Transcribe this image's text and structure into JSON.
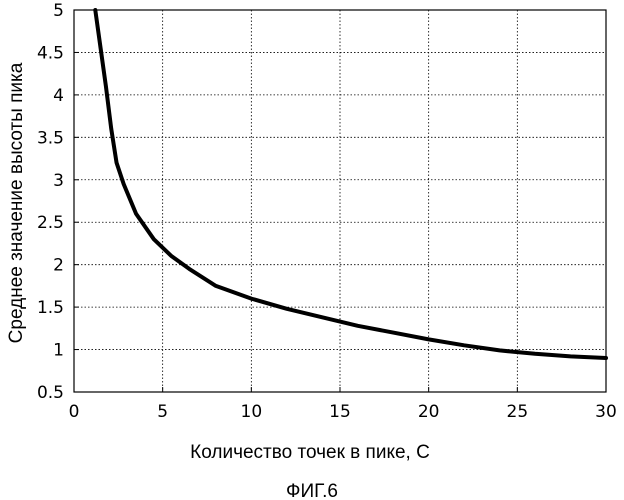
{
  "chart_data": {
    "type": "line",
    "title": "",
    "caption": "ФИГ.6",
    "xlabel": "Количество точек в пике, С",
    "ylabel": "Среднее значение высоты пика",
    "xlim": [
      0,
      30
    ],
    "ylim": [
      0.5,
      5
    ],
    "x_ticks": [
      0,
      5,
      10,
      15,
      20,
      25,
      30
    ],
    "y_ticks": [
      0.5,
      1,
      1.5,
      2,
      2.5,
      3,
      3.5,
      4,
      4.5,
      5
    ],
    "x_tick_labels": [
      "0",
      "5",
      "10",
      "15",
      "20",
      "25",
      "30"
    ],
    "y_tick_labels": [
      "0.5",
      "1",
      "1.5",
      "2",
      "2.5",
      "3",
      "3.5",
      "4",
      "4.5",
      "5"
    ],
    "grid": true,
    "legend": "none",
    "series": [
      {
        "color": "#000000",
        "x": [
          1.2,
          1.5,
          1.8,
          2.1,
          2.4,
          2.8,
          3.5,
          4.5,
          5.5,
          6.5,
          8,
          10,
          12,
          14,
          16,
          18,
          20,
          22,
          24,
          26,
          28,
          30
        ],
        "y": [
          5.0,
          4.55,
          4.1,
          3.6,
          3.2,
          2.95,
          2.6,
          2.3,
          2.1,
          1.95,
          1.75,
          1.6,
          1.48,
          1.38,
          1.28,
          1.2,
          1.12,
          1.05,
          0.99,
          0.95,
          0.92,
          0.9
        ]
      }
    ]
  }
}
